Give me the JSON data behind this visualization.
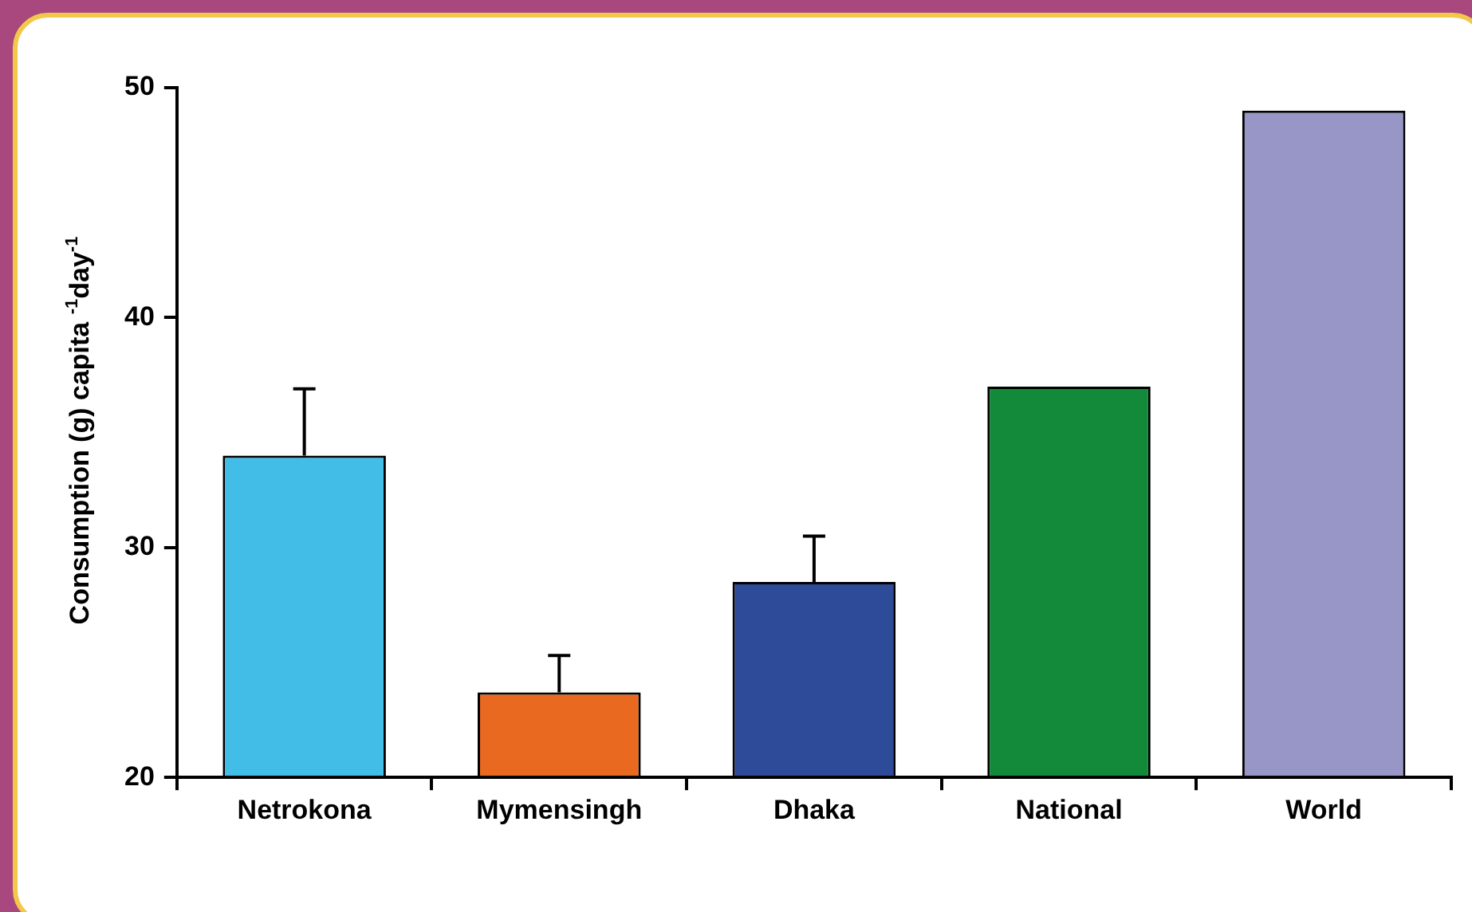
{
  "chart_data": {
    "type": "bar",
    "ylabel": "Consumption (g) capita $^{-1}$day$^{-1}$",
    "categories": [
      "Netrokona",
      "Mymensingh",
      "Dhaka",
      "National",
      "World"
    ],
    "values": [
      34.0,
      23.7,
      28.5,
      37.0,
      49.0
    ],
    "colors": [
      "#41bde8",
      "#e8691f",
      "#2e4b9a",
      "#138a3a",
      "#9895c7"
    ],
    "errors": [
      [
        34.0,
        36.9
      ],
      [
        23.7,
        25.3
      ],
      [
        28.5,
        30.5
      ],
      null,
      null
    ],
    "ylim": [
      20,
      50
    ],
    "yticks": [
      20,
      30,
      40,
      50
    ]
  }
}
